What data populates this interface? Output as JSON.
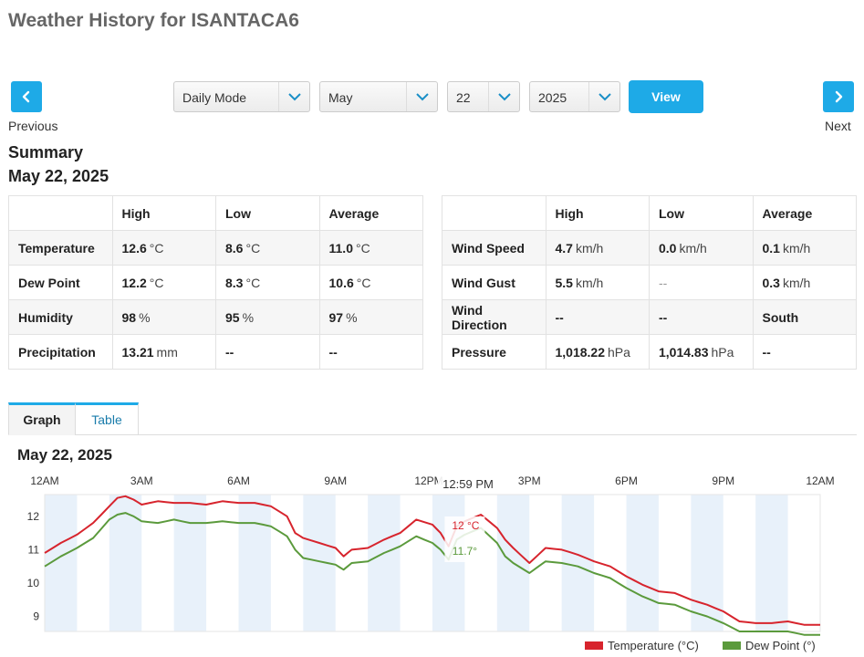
{
  "page": {
    "title": "Weather History for ISANTACA6"
  },
  "nav": {
    "previous_label": "Previous",
    "next_label": "Next"
  },
  "controls": {
    "mode": "Daily Mode",
    "month": "May",
    "day": "22",
    "year": "2025",
    "view_label": "View"
  },
  "summary": {
    "title": "Summary",
    "date": "May 22, 2025",
    "headers": [
      "",
      "High",
      "Low",
      "Average"
    ],
    "left_rows": [
      {
        "label": "Temperature",
        "high": "12.6",
        "high_unit": "°C",
        "low": "8.6",
        "low_unit": "°C",
        "avg": "11.0",
        "avg_unit": "°C"
      },
      {
        "label": "Dew Point",
        "high": "12.2",
        "high_unit": "°C",
        "low": "8.3",
        "low_unit": "°C",
        "avg": "10.6",
        "avg_unit": "°C"
      },
      {
        "label": "Humidity",
        "high": "98",
        "high_unit": "%",
        "low": "95",
        "low_unit": "%",
        "avg": "97",
        "avg_unit": "%"
      },
      {
        "label": "Precipitation",
        "high": "13.21",
        "high_unit": "mm",
        "low": "--",
        "low_unit": "",
        "avg": "--",
        "avg_unit": ""
      }
    ],
    "right_rows": [
      {
        "label": "Wind Speed",
        "high": "4.7",
        "high_unit": "km/h",
        "low": "0.0",
        "low_unit": "km/h",
        "avg": "0.1",
        "avg_unit": "km/h"
      },
      {
        "label": "Wind Gust",
        "high": "5.5",
        "high_unit": "km/h",
        "low": "--",
        "low_unit": "",
        "avg": "0.3",
        "avg_unit": "km/h"
      },
      {
        "label": "Wind Direction",
        "high": "--",
        "high_unit": "",
        "low": "--",
        "low_unit": "",
        "avg": "South",
        "avg_unit": ""
      },
      {
        "label": "Pressure",
        "high": "1,018.22",
        "high_unit": "hPa",
        "low": "1,014.83",
        "low_unit": "hPa",
        "avg": "--",
        "avg_unit": ""
      }
    ]
  },
  "tabs": [
    {
      "label": "Graph",
      "active": true
    },
    {
      "label": "Table",
      "active": false
    }
  ],
  "graph": {
    "date": "May 22, 2025"
  },
  "chart_data": {
    "type": "line",
    "x_ticks": [
      "12AM",
      "3AM",
      "6AM",
      "9AM",
      "12PM",
      "3PM",
      "6PM",
      "9PM",
      "12AM"
    ],
    "y_ticks": [
      9,
      10,
      11,
      12
    ],
    "ylim": [
      8.55,
      12.65
    ],
    "tooltip": {
      "time": "12:59 PM",
      "temp_label": "12 °C",
      "dew_label": "11.7°"
    },
    "series": [
      {
        "name": "Temperature (°C)",
        "color": "#d7242d",
        "x": [
          0,
          0.5,
          1,
          1.5,
          2,
          2.25,
          2.5,
          2.75,
          3,
          3.5,
          4,
          4.5,
          5,
          5.5,
          6,
          6.5,
          7,
          7.5,
          7.75,
          8,
          8.5,
          9,
          9.25,
          9.5,
          10,
          10.5,
          11,
          11.5,
          12,
          12.25,
          12.5,
          12.75,
          13,
          13.5,
          14,
          14.25,
          14.5,
          15,
          15.5,
          16,
          16.5,
          17,
          17.5,
          18,
          18.5,
          19,
          19.5,
          20,
          20.5,
          21,
          21.5,
          22,
          22.5,
          23,
          23.5,
          24
        ],
        "values": [
          10.9,
          11.2,
          11.45,
          11.8,
          12.3,
          12.55,
          12.6,
          12.5,
          12.35,
          12.45,
          12.4,
          12.4,
          12.35,
          12.45,
          12.4,
          12.4,
          12.3,
          12.0,
          11.5,
          11.35,
          11.2,
          11.05,
          10.8,
          11.0,
          11.05,
          11.3,
          11.5,
          11.9,
          11.75,
          11.5,
          11.1,
          11.7,
          11.85,
          12.05,
          11.65,
          11.3,
          11.05,
          10.6,
          11.05,
          11.0,
          10.85,
          10.65,
          10.5,
          10.2,
          9.95,
          9.75,
          9.7,
          9.5,
          9.35,
          9.15,
          8.85,
          8.8,
          8.8,
          8.85,
          8.75,
          8.75
        ]
      },
      {
        "name": "Dew Point (°)",
        "color": "#5b9a3c",
        "x": [
          0,
          0.5,
          1,
          1.5,
          2,
          2.25,
          2.5,
          2.75,
          3,
          3.5,
          4,
          4.5,
          5,
          5.5,
          6,
          6.5,
          7,
          7.5,
          7.75,
          8,
          8.5,
          9,
          9.25,
          9.5,
          10,
          10.5,
          11,
          11.5,
          12,
          12.25,
          12.5,
          12.75,
          13,
          13.5,
          14,
          14.25,
          14.5,
          15,
          15.5,
          16,
          16.5,
          17,
          17.5,
          18,
          18.5,
          19,
          19.5,
          20,
          20.5,
          21,
          21.5,
          22,
          22.5,
          23,
          23.5,
          24
        ],
        "values": [
          10.5,
          10.8,
          11.05,
          11.35,
          11.9,
          12.05,
          12.1,
          12.0,
          11.85,
          11.8,
          11.9,
          11.8,
          11.8,
          11.85,
          11.8,
          11.8,
          11.7,
          11.4,
          11.0,
          10.75,
          10.65,
          10.55,
          10.4,
          10.6,
          10.65,
          10.9,
          11.1,
          11.4,
          11.2,
          11.0,
          10.7,
          11.3,
          11.45,
          11.65,
          11.2,
          10.8,
          10.6,
          10.3,
          10.65,
          10.6,
          10.5,
          10.3,
          10.15,
          9.85,
          9.6,
          9.4,
          9.35,
          9.15,
          9.0,
          8.8,
          8.55,
          8.55,
          8.55,
          8.55,
          8.45,
          8.45
        ]
      }
    ]
  }
}
